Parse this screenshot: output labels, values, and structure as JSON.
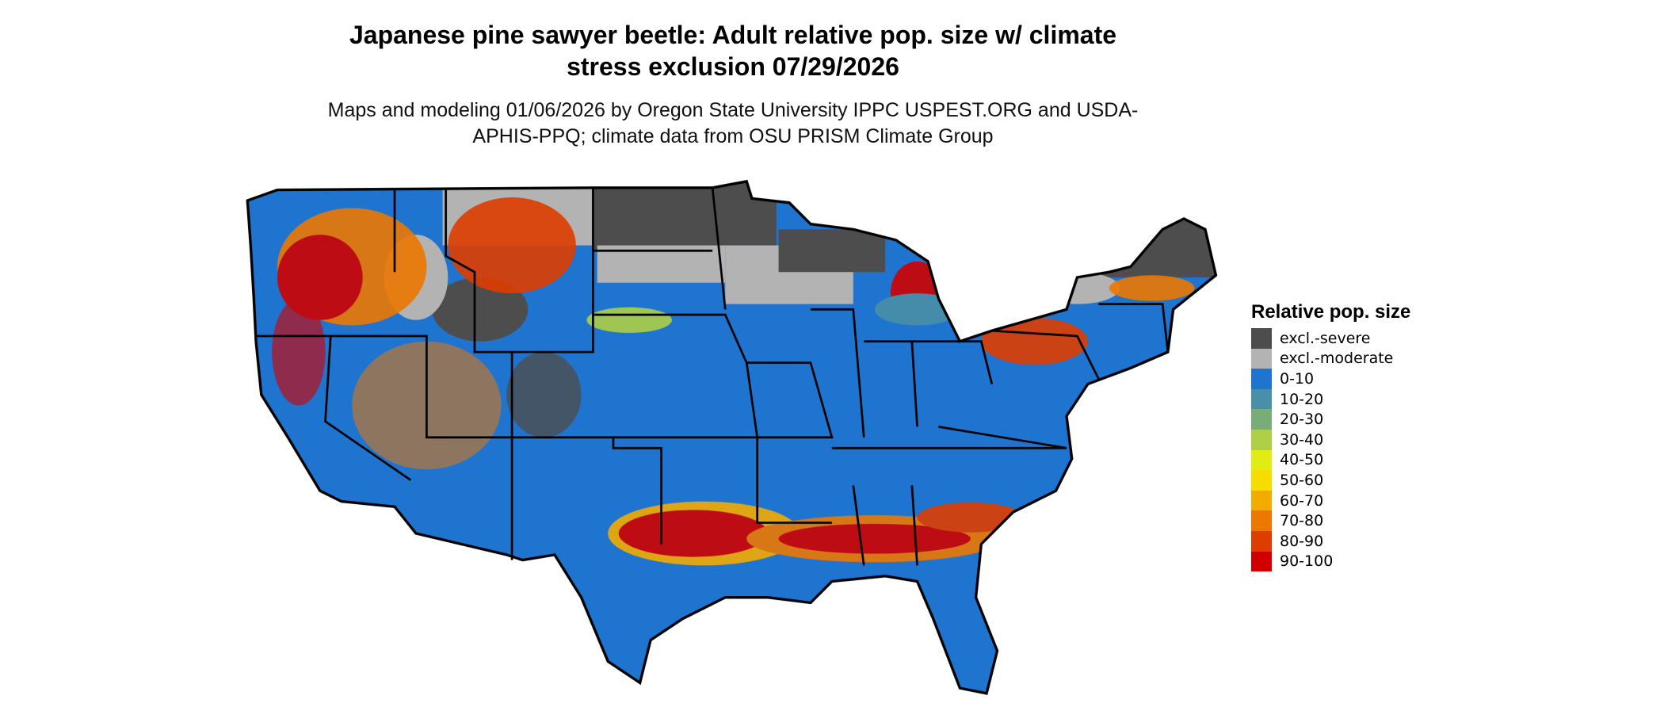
{
  "title": "Japanese pine sawyer beetle: Adult relative pop. size w/ climate stress exclusion 07/29/2026",
  "subtitle": "Maps and modeling 01/06/2026 by Oregon State University IPPC USPEST.ORG and USDA-APHIS-PPQ; climate data from OSU PRISM Climate Group",
  "legend": {
    "title": "Relative pop. size",
    "items": [
      {
        "label": "excl.-severe",
        "color": "#4d4d4d"
      },
      {
        "label": "excl.-moderate",
        "color": "#b3b3b3"
      },
      {
        "label": "0-10",
        "color": "#1f74cf"
      },
      {
        "label": "10-20",
        "color": "#4a8fa8"
      },
      {
        "label": "20-30",
        "color": "#7aac78"
      },
      {
        "label": "30-40",
        "color": "#aed046"
      },
      {
        "label": "40-50",
        "color": "#e1ec14"
      },
      {
        "label": "50-60",
        "color": "#f7dc00"
      },
      {
        "label": "60-70",
        "color": "#f4ab00"
      },
      {
        "label": "70-80",
        "color": "#ec7800"
      },
      {
        "label": "80-90",
        "color": "#df3d00"
      },
      {
        "label": "90-100",
        "color": "#d10000"
      }
    ]
  }
}
